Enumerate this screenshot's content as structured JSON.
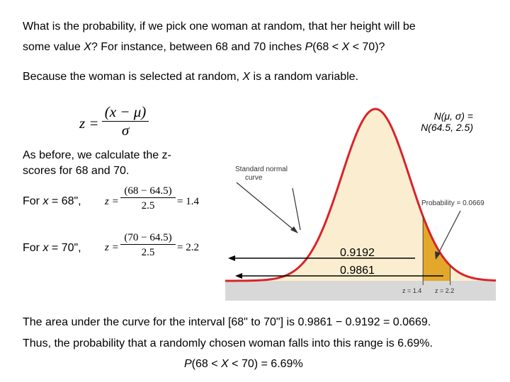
{
  "intro": {
    "line1": "What is the probability, if we pick one woman at random, that her height will be",
    "line2a": "some value ",
    "line2_x": "X",
    "line2b": "?  For instance, between 68 and 70 inches ",
    "line2_p": "P",
    "line2c": "(68 < ",
    "line2_x2": "X",
    "line2d": " < 70)?"
  },
  "random_var": {
    "a": "Because the woman is selected at random, ",
    "x": "X",
    "b": " is a random variable."
  },
  "formula": {
    "lhs": "z =",
    "numerator": "(x − μ)",
    "denominator": "σ"
  },
  "zscores_text": {
    "line1": "As before, we calculate the z-",
    "line2": "scores for 68 and 70."
  },
  "calc68": {
    "prefix": "For ",
    "x": "x",
    "suffix": " = 68\",",
    "lhs": "z =",
    "numerator": "(68 − 64.5)",
    "denominator": "2.5",
    "result": "= 1.4"
  },
  "calc70": {
    "prefix": "For ",
    "x": "x",
    "suffix": " = 70\",",
    "lhs": "z =",
    "numerator": "(70 − 64.5)",
    "denominator": "2.5",
    "result": "= 2.2"
  },
  "figure": {
    "dist_label_line1": "N(μ, σ) =",
    "dist_label_line2": "N(64.5, 2.5)",
    "standard_normal_line1": "Standard normal",
    "standard_normal_line2": "curve",
    "probability_label": "Probability = 0.0669",
    "z_tick_1": "z = 1.4",
    "z_tick_2": "z = 2.2",
    "value_1": "0.9192",
    "value_2": "0.9861",
    "colors": {
      "curve": "#d9232a",
      "fill": "#fbeed0",
      "shaded": "#e3a82b",
      "axis_band": "#d8d8d8"
    }
  },
  "conclusion": {
    "line1": "The area under the curve for the interval [68\" to 70\"] is 0.9861 − 0.9192 = 0.0669.",
    "line2": "Thus, the probability that a randomly chosen woman falls into this range is 6.69%.",
    "final_p": "P",
    "final_a": "(68 < ",
    "final_x": "X",
    "final_b": " < 70) = 6.69%"
  }
}
